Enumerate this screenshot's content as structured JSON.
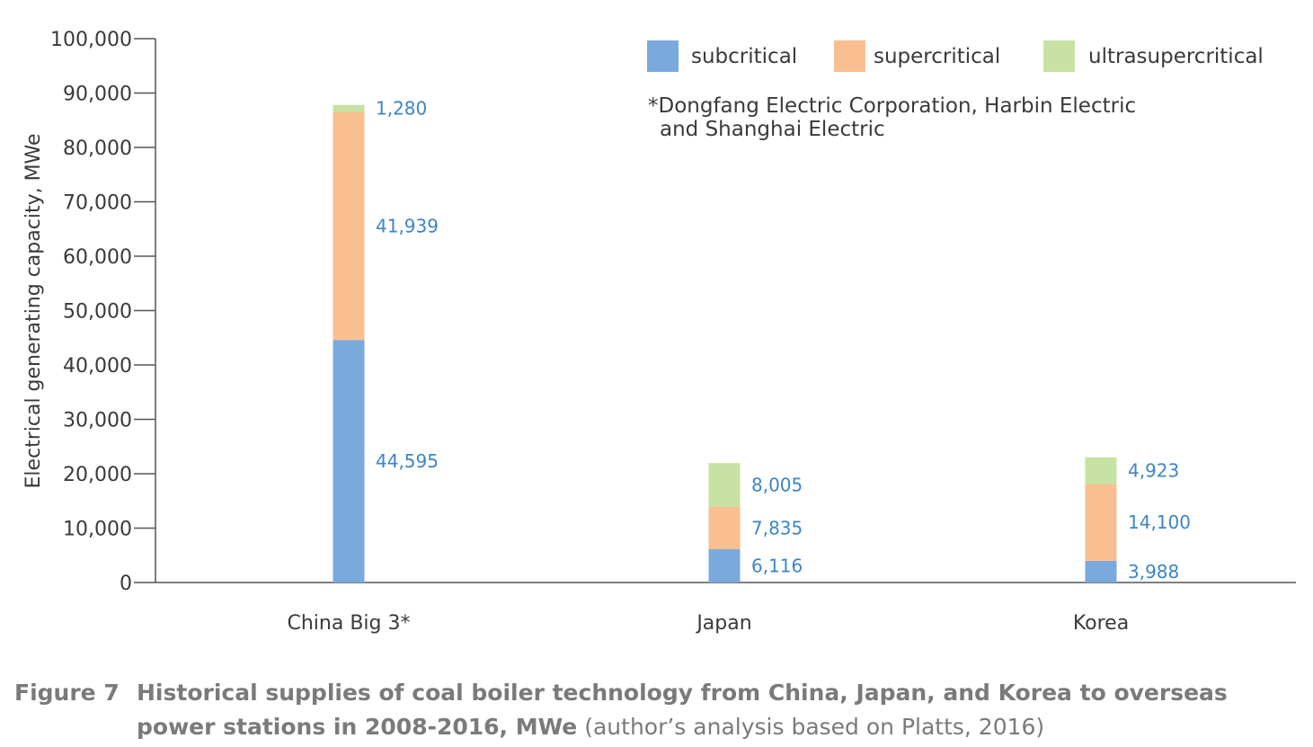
{
  "chart_data": {
    "type": "bar",
    "stacked": true,
    "categories": [
      "China Big 3*",
      "Japan",
      "Korea"
    ],
    "series": [
      {
        "name": "subcritical",
        "color": "#7aa9dc",
        "values": [
          44595,
          6116,
          3988
        ],
        "labels": [
          "44,595",
          "6,116",
          "3,988"
        ]
      },
      {
        "name": "supercritical",
        "color": "#f9bf91",
        "values": [
          41939,
          7835,
          14100
        ],
        "labels": [
          "41,939",
          "7,835",
          "14,100"
        ]
      },
      {
        "name": "ultrasupercritical",
        "color": "#c7e2a2",
        "values": [
          1280,
          8005,
          4923
        ],
        "labels": [
          "1,280",
          "8,005",
          "4,923"
        ]
      }
    ],
    "ylabel": "Electrical generating capacity, MWe",
    "xlabel": "",
    "ylim": [
      0,
      100000
    ],
    "yticks": [
      0,
      10000,
      20000,
      30000,
      40000,
      50000,
      60000,
      70000,
      80000,
      90000,
      100000
    ],
    "ytick_labels": [
      "0",
      "10,000",
      "20,000",
      "30,000",
      "40,000",
      "50,000",
      "60,000",
      "70,000",
      "80,000",
      "90,000",
      "100,000"
    ],
    "legend_position": "top-right",
    "grid": false,
    "value_label_color": "#3d85c6",
    "annotation": [
      "*Dongfang Electric Corporation, Harbin Electric",
      "and Shanghai Electric"
    ]
  },
  "caption": {
    "figure_number": "Figure 7",
    "title": "Historical supplies of coal boiler technology from China, Japan, and Korea to overseas power stations in 2008-2016, MWe",
    "source": "(author’s analysis based on Platts, 2016)"
  }
}
